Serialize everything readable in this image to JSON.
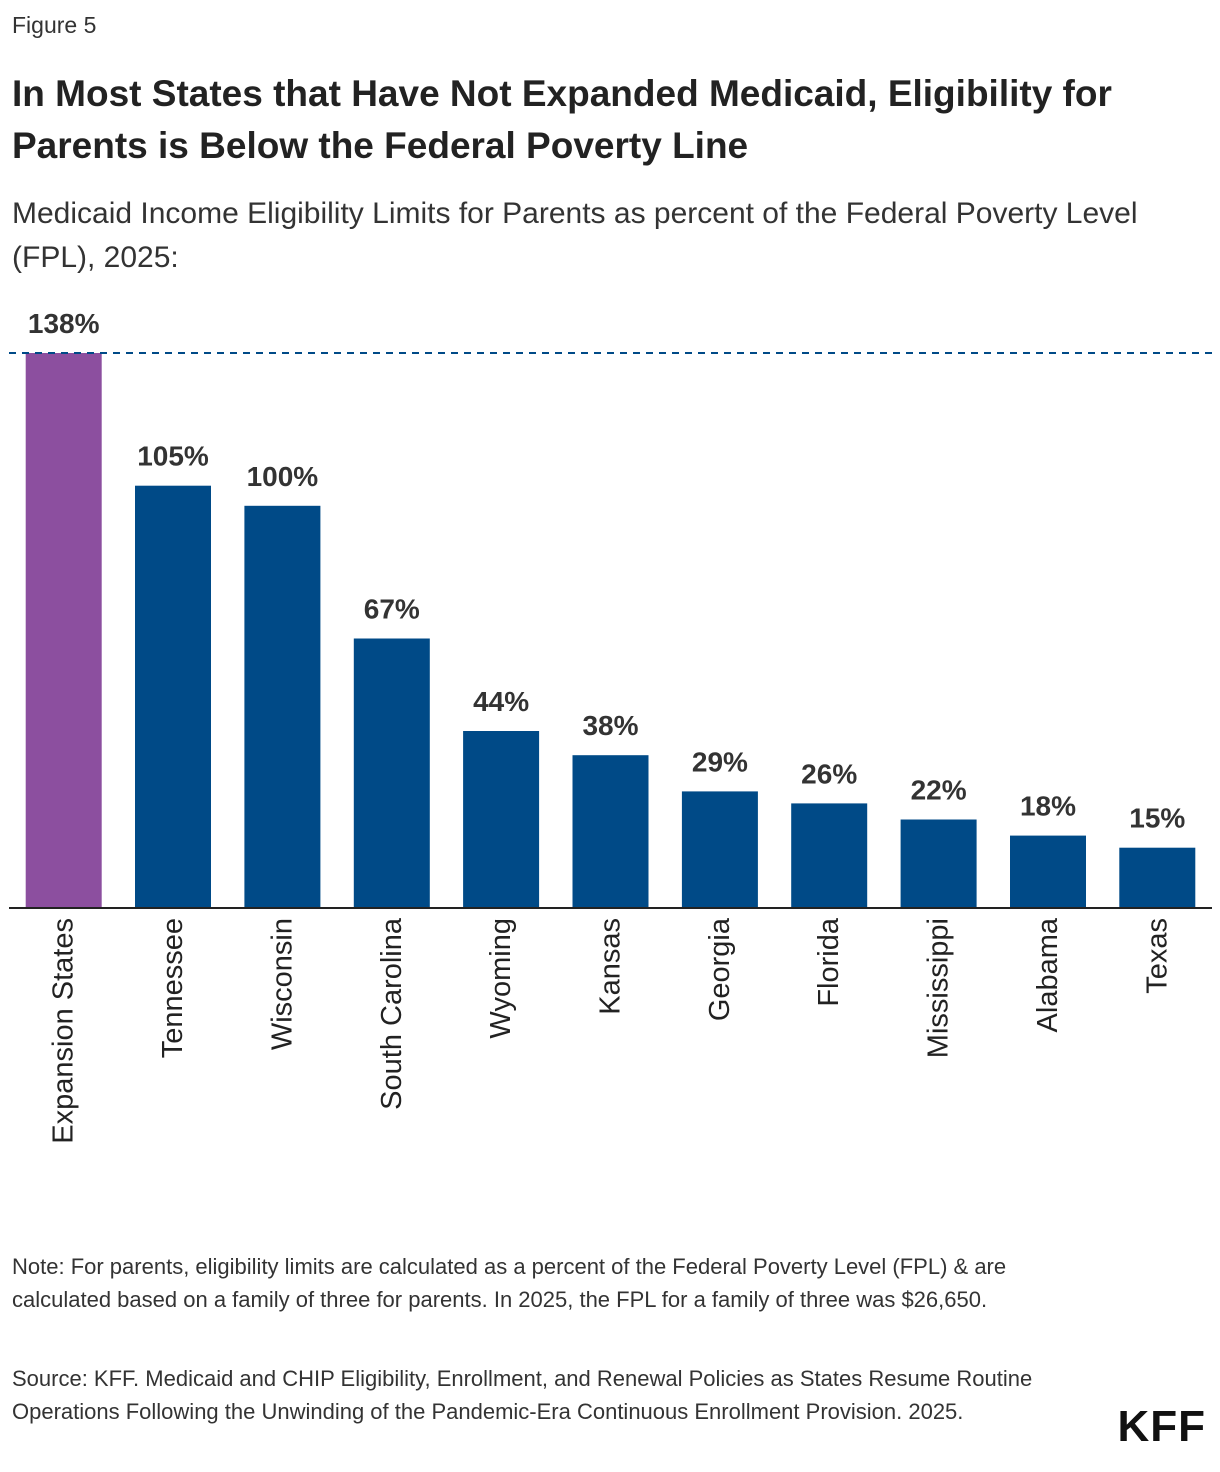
{
  "figure_label": "Figure 5",
  "chart_data": {
    "type": "bar",
    "title": "In Most States that Have Not Expanded Medicaid, Eligibility for Parents is Below the Federal Poverty Line",
    "subtitle": "Medicaid Income Eligibility Limits for Parents as percent of the Federal Poverty Level (FPL), 2025:",
    "categories": [
      "Expansion States",
      "Tennessee",
      "Wisconsin",
      "South Carolina",
      "Wyoming",
      "Kansas",
      "Georgia",
      "Florida",
      "Mississippi",
      "Alabama",
      "Texas"
    ],
    "values": [
      138,
      105,
      100,
      67,
      44,
      38,
      29,
      26,
      22,
      18,
      15
    ],
    "data_labels": [
      "138%",
      "105%",
      "100%",
      "67%",
      "44%",
      "38%",
      "29%",
      "26%",
      "22%",
      "18%",
      "15%"
    ],
    "reference_line": {
      "value": 138,
      "style": "dashed"
    },
    "colors": [
      "#8c4f9f",
      "#004a87",
      "#004a87",
      "#004a87",
      "#004a87",
      "#004a87",
      "#004a87",
      "#004a87",
      "#004a87",
      "#004a87",
      "#004a87"
    ],
    "reference_color": "#004a87",
    "ylim": [
      0,
      138
    ],
    "xlabel": "",
    "ylabel": "",
    "grid": false
  },
  "note": "Note: For parents, eligibility limits are calculated as a percent of the Federal Poverty Level (FPL) & are calculated based on a family of three for parents. In 2025, the FPL for a family of three was $26,650.",
  "source": "Source: KFF. Medicaid and CHIP Eligibility, Enrollment, and Renewal Policies as States Resume Routine Operations Following the Unwinding of the Pandemic-Era Continuous Enrollment Provision. 2025.",
  "logo_text": "KFF"
}
